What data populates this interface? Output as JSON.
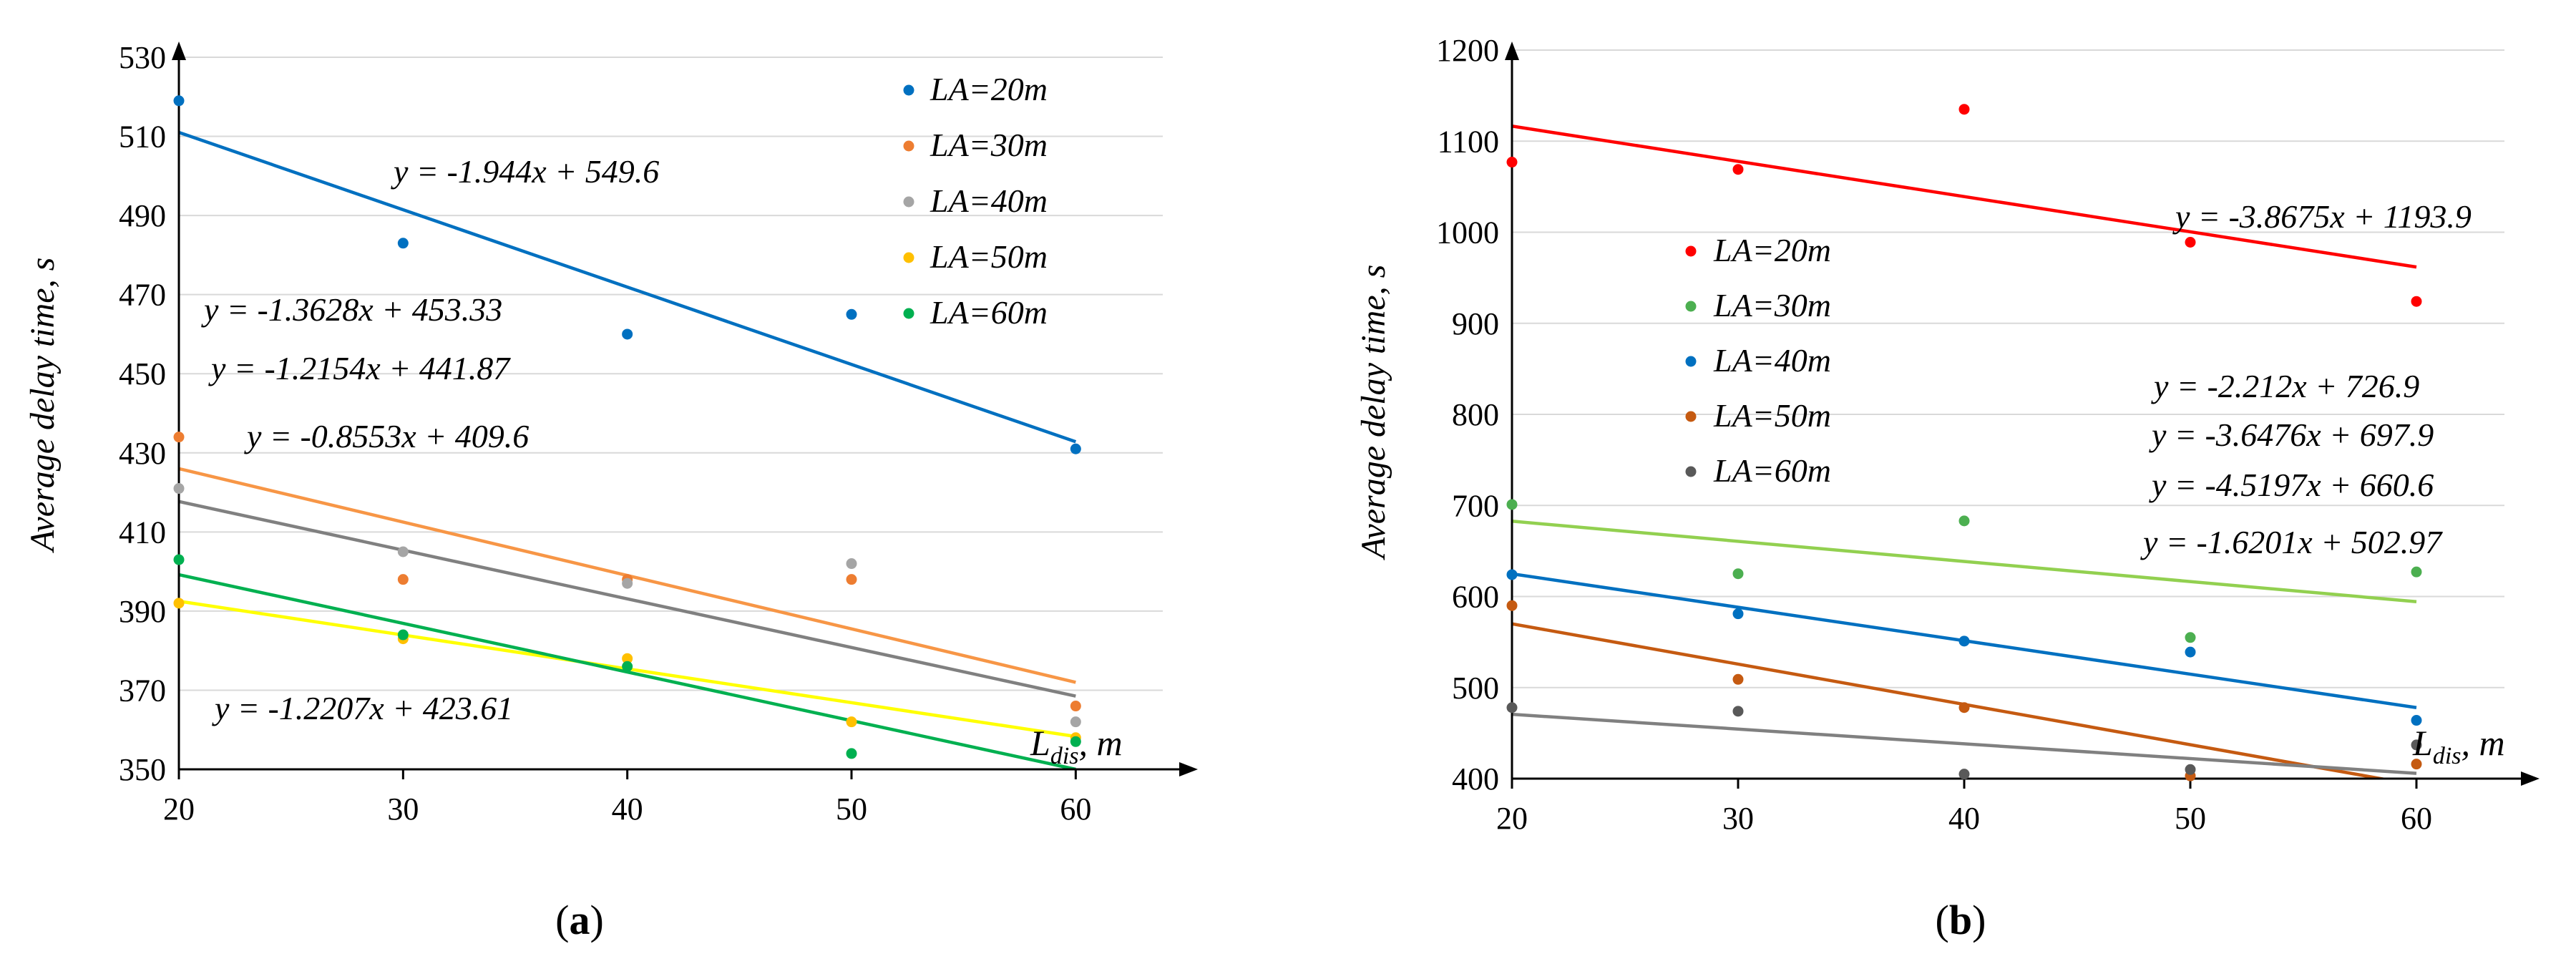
{
  "chart_data": [
    {
      "type": "scatter",
      "panel": "a",
      "ylabel": "Average delay time, s",
      "xlabel": "L",
      "xlabel_sub": "dis",
      "xlabel_unit": ", m",
      "x": [
        20,
        30,
        40,
        50,
        60
      ],
      "xticks": [
        "20",
        "30",
        "40",
        "50",
        "60"
      ],
      "xlim": [
        20,
        65
      ],
      "ylim": [
        350,
        530
      ],
      "yticks": [
        "350",
        "370",
        "390",
        "410",
        "430",
        "450",
        "470",
        "490",
        "510",
        "530"
      ],
      "grid": "horizontal",
      "legend_position": "top-right",
      "series": [
        {
          "name": "LA=20m",
          "color": "#0070C0",
          "marker_color": "#0070C0",
          "values": [
            519,
            483,
            460,
            465,
            431
          ],
          "trend": [
            511,
            432.8
          ]
        },
        {
          "name": "LA=30m",
          "color": "#F79646",
          "marker_color": "#ED7D31",
          "values": [
            434,
            398,
            398,
            398,
            366
          ],
          "trend": [
            426,
            372
          ]
        },
        {
          "name": "LA=40m",
          "color": "#808080",
          "marker_color": "#A5A5A5",
          "values": [
            421,
            405,
            397,
            402,
            362
          ],
          "trend": [
            417.7,
            368.5
          ]
        },
        {
          "name": "LA=50m",
          "color": "#FFFF00",
          "marker_color": "#FFC000",
          "values": [
            392,
            383,
            378,
            362,
            358
          ],
          "trend": [
            392.5,
            358.3
          ]
        },
        {
          "name": "LA=60m",
          "color": "#00B050",
          "marker_color": "#00B050",
          "values": [
            403,
            384,
            376,
            354,
            357
          ],
          "trend": [
            399.2,
            350
          ]
        }
      ],
      "equations": [
        "y = -1.944x + 549.6",
        "y = -1.3628x + 453.33",
        "y = -1.2154x + 441.87",
        "y = -0.8553x + 409.6",
        "y = -1.2207x + 423.61"
      ]
    },
    {
      "type": "scatter",
      "panel": "b",
      "ylabel": "Average delay time, s",
      "xlabel": "L",
      "xlabel_sub": "dis",
      "xlabel_unit": ", m",
      "x": [
        20,
        30,
        40,
        50,
        60
      ],
      "xticks": [
        "20",
        "30",
        "40",
        "50",
        "60"
      ],
      "xlim": [
        20,
        65
      ],
      "ylim": [
        400,
        1200
      ],
      "yticks": [
        "400",
        "500",
        "600",
        "700",
        "800",
        "900",
        "1000",
        "1100",
        "1200"
      ],
      "grid": "horizontal",
      "legend_position": "center-left",
      "series": [
        {
          "name": "LA=20m",
          "color": "#FF0000",
          "marker_color": "#FF0000",
          "values": [
            1077,
            1069,
            1135,
            989,
            924
          ],
          "trend": [
            1116.5,
            961.8
          ]
        },
        {
          "name": "LA=30m",
          "color": "#92D050",
          "marker_color": "#4CAF50",
          "values": [
            701,
            625,
            683,
            555,
            627
          ],
          "trend": [
            682.7,
            594.3
          ]
        },
        {
          "name": "LA=40m",
          "color": "#0070C0",
          "marker_color": "#0070C0",
          "values": [
            624,
            581,
            551,
            539,
            464
          ],
          "trend": [
            624.9,
            478
          ]
        },
        {
          "name": "LA=50m",
          "color": "#C55A11",
          "marker_color": "#C55A11",
          "values": [
            590,
            509,
            478,
            403,
            416
          ],
          "trend": [
            570,
            393
          ]
        },
        {
          "name": "LA=60m",
          "color": "#808080",
          "marker_color": "#595959",
          "values": [
            478,
            474,
            405,
            410,
            437
          ],
          "trend": [
            470.6,
            405.8
          ]
        }
      ],
      "equations": [
        "y = -3.8675x + 1193.9",
        "y = -2.212x + 726.9",
        "y = -3.6476x + 697.9",
        "y = -4.5197x + 660.6",
        "y = -1.6201x + 502.97"
      ]
    }
  ],
  "captions": {
    "a": {
      "open": "(",
      "letter": "a",
      "close": ")"
    },
    "b": {
      "open": "(",
      "letter": "b",
      "close": ")"
    }
  }
}
